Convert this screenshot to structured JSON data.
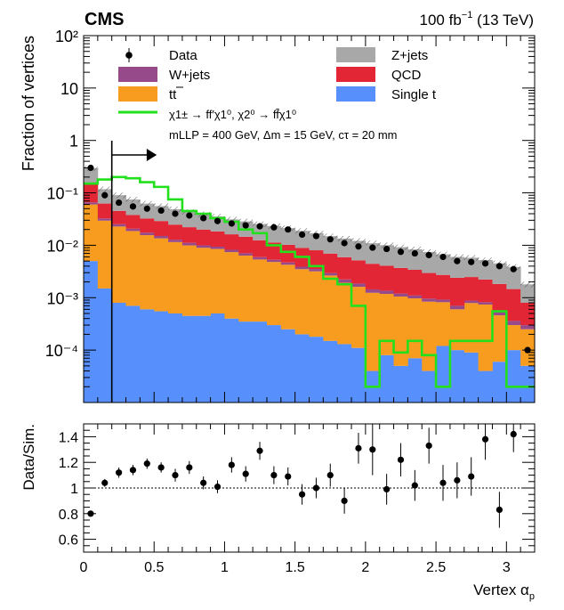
{
  "header": {
    "experiment": "CMS",
    "lumi": "100 fb",
    "lumi_exp": "−1",
    "energy": " (13 TeV)"
  },
  "legend": {
    "data": "Data",
    "wjets": "W+jets",
    "ttbar": "tt",
    "zjets": "Z+jets",
    "qcd": "QCD",
    "singlet": "Single t",
    "signal_process": "χ1± → ff′χ1⁰, χ2⁰ → ff̄χ1⁰",
    "signal_params": "mLLP = 400 GeV, Δm = 15 GeV, cτ = 20 mm"
  },
  "colors": {
    "zjets": "#a8a8a8",
    "qcd": "#e32636",
    "wjets": "#964a8a",
    "ttbar": "#f89c20",
    "singlet": "#5790fc",
    "signal": "#22e01c"
  },
  "chart_data": [
    {
      "type": "area",
      "subtype": "stacked-histogram-log",
      "ylabel": "Fraction of vertices",
      "ylog": true,
      "ylim": [
        1e-05,
        100
      ],
      "yticks": [
        "10⁻⁴",
        "10⁻³",
        "10⁻²",
        "10⁻¹",
        "1",
        "10",
        "10²"
      ],
      "xlim": [
        0,
        3.2
      ],
      "cut_value": 0.2,
      "bin_edges": [
        0,
        0.1,
        0.2,
        0.3,
        0.4,
        0.5,
        0.6,
        0.7,
        0.8,
        0.9,
        1.0,
        1.1,
        1.2,
        1.3,
        1.4,
        1.5,
        1.6,
        1.7,
        1.8,
        1.9,
        2.0,
        2.1,
        2.2,
        2.3,
        2.4,
        2.5,
        2.6,
        2.7,
        2.8,
        2.9,
        3.0,
        3.1,
        3.2
      ],
      "series": [
        {
          "name": "Single t",
          "values": [
            0.005,
            0.0015,
            0.0008,
            0.0007,
            0.0006,
            0.00055,
            0.0005,
            0.00045,
            0.00045,
            0.0005,
            0.0004,
            0.00035,
            0.00035,
            0.0003,
            0.00025,
            0.0002,
            0.00018,
            0.00015,
            0.00013,
            0.00011,
            4e-05,
            8e-05,
            5e-05,
            7e-05,
            4e-05,
            0.00012,
            0.0001,
            9e-05,
            4e-05,
            6e-05,
            0.0001,
            5e-05
          ]
        },
        {
          "name": "tt",
          "values": [
            0.055,
            0.028,
            0.022,
            0.018,
            0.015,
            0.013,
            0.011,
            0.0095,
            0.0085,
            0.008,
            0.007,
            0.006,
            0.005,
            0.0045,
            0.004,
            0.0033,
            0.003,
            0.0025,
            0.0018,
            0.0015,
            0.0012,
            0.0011,
            0.001,
            0.0009,
            0.0008,
            0.0007,
            0.0005,
            0.0007,
            0.0007,
            0.0004,
            0.0002,
            0.0002
          ]
        },
        {
          "name": "W+jets",
          "values": [
            0.006,
            0.003,
            0.0025,
            0.002,
            0.0018,
            0.0015,
            0.0013,
            0.0012,
            0.001,
            0.0009,
            0.0008,
            0.0007,
            0.0006,
            0.0005,
            0.00045,
            0.0004,
            0.00035,
            0.0003,
            0.0003,
            0.00025,
            0.0002,
            0.00018,
            0.00015,
            0.00013,
            0.00012,
            0.0001,
            0.0001,
            9e-05,
            8e-05,
            7e-05,
            6e-05,
            5e-05
          ]
        },
        {
          "name": "QCD",
          "values": [
            0.08,
            0.03,
            0.02,
            0.017,
            0.015,
            0.014,
            0.012,
            0.011,
            0.01,
            0.009,
            0.008,
            0.0075,
            0.0065,
            0.006,
            0.0055,
            0.005,
            0.0045,
            0.004,
            0.0037,
            0.0033,
            0.003,
            0.0027,
            0.0025,
            0.0023,
            0.002,
            0.0018,
            0.0017,
            0.0016,
            0.0014,
            0.0013,
            0.0011,
            0.0005
          ]
        },
        {
          "name": "Z+jets",
          "values": [
            0.15,
            0.055,
            0.045,
            0.037,
            0.03,
            0.027,
            0.024,
            0.021,
            0.019,
            0.017,
            0.015,
            0.014,
            0.013,
            0.012,
            0.011,
            0.01,
            0.009,
            0.008,
            0.0075,
            0.007,
            0.0065,
            0.006,
            0.0055,
            0.005,
            0.0045,
            0.004,
            0.0036,
            0.0033,
            0.003,
            0.0027,
            0.0024,
            0.001
          ]
        }
      ],
      "data_points": [
        0.3,
        0.09,
        0.065,
        0.055,
        0.05,
        0.046,
        0.04,
        0.037,
        0.033,
        0.029,
        0.026,
        0.024,
        0.023,
        0.022,
        0.02,
        0.016,
        0.015,
        0.013,
        0.011,
        0.0095,
        0.009,
        0.0085,
        0.0075,
        0.007,
        0.0065,
        0.006,
        0.005,
        0.0048,
        0.0045,
        0.004,
        0.0035,
        0.0001
      ],
      "signal": {
        "values": [
          0.15,
          0.18,
          0.2,
          0.19,
          0.16,
          0.13,
          0.075,
          0.045,
          0.04,
          0.033,
          0.028,
          0.02,
          0.017,
          0.01,
          0.0075,
          0.006,
          0.004,
          0.0023,
          0.0018,
          0.0007,
          2e-05,
          0.00015,
          9e-05,
          0.00015,
          8e-05,
          2e-05,
          0.00015,
          0.00015,
          0.00015,
          0.00055,
          2e-05,
          2e-05
        ]
      }
    },
    {
      "type": "scatter",
      "subtype": "ratio-with-errors",
      "ylabel": "Data/Sim.",
      "xlabel": "Vertex α",
      "xlabel_sub": "p",
      "xlim": [
        0,
        3.2
      ],
      "ylim": [
        0.5,
        1.5
      ],
      "xticks": [
        "0",
        "0.5",
        "1",
        "1.5",
        "2",
        "2.5",
        "3"
      ],
      "yticks": [
        "0.6",
        "0.8",
        "1",
        "1.2",
        "1.4"
      ],
      "reference_line": 1,
      "x": [
        0.05,
        0.15,
        0.25,
        0.35,
        0.45,
        0.55,
        0.65,
        0.75,
        0.85,
        0.95,
        1.05,
        1.15,
        1.25,
        1.35,
        1.45,
        1.55,
        1.65,
        1.75,
        1.85,
        1.95,
        2.05,
        2.15,
        2.25,
        2.35,
        2.45,
        2.55,
        2.65,
        2.75,
        2.85,
        2.95,
        3.05
      ],
      "y": [
        0.8,
        1.04,
        1.12,
        1.14,
        1.19,
        1.16,
        1.1,
        1.16,
        1.04,
        1.01,
        1.18,
        1.11,
        1.29,
        1.1,
        1.09,
        0.95,
        1.0,
        1.1,
        0.9,
        1.31,
        1.3,
        0.99,
        1.22,
        1.02,
        1.33,
        1.04,
        1.06,
        1.09,
        1.38,
        0.83,
        1.42
      ],
      "yerr": [
        0.02,
        0.03,
        0.04,
        0.04,
        0.04,
        0.04,
        0.05,
        0.05,
        0.05,
        0.05,
        0.06,
        0.06,
        0.07,
        0.07,
        0.07,
        0.08,
        0.08,
        0.09,
        0.1,
        0.12,
        0.2,
        0.12,
        0.13,
        0.12,
        0.14,
        0.14,
        0.14,
        0.15,
        0.16,
        0.14,
        0.14
      ]
    }
  ]
}
